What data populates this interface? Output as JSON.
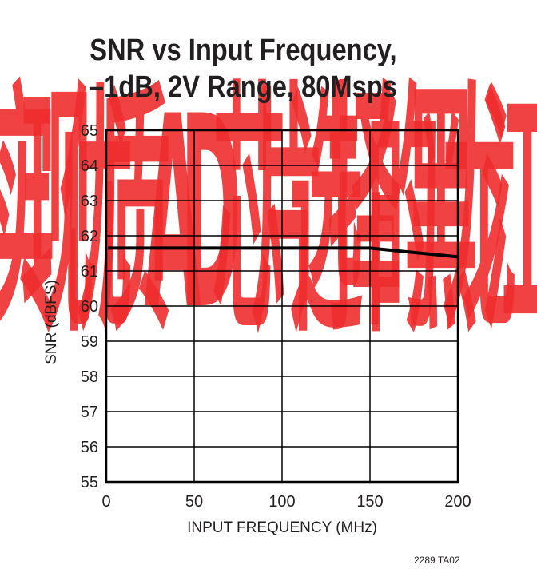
{
  "watermark": {
    "text": "实现优质AD芯片选择的黑龙江",
    "color": "#ee2e2e"
  },
  "chart_data": {
    "type": "line",
    "title_lines": [
      "SNR vs Input Frequency,",
      "–1dB, 2V Range, 80Msps"
    ],
    "xlabel": "INPUT FREQUENCY (MHz)",
    "ylabel": "SNR (dBFS)",
    "xlim": [
      0,
      200
    ],
    "ylim": [
      55,
      65
    ],
    "x_ticks": [
      0,
      50,
      100,
      150,
      200
    ],
    "y_ticks": [
      55,
      56,
      57,
      58,
      59,
      60,
      61,
      62,
      63,
      64,
      65
    ],
    "grid": true,
    "series": [
      {
        "x": [
          1,
          50,
          100,
          150,
          200
        ],
        "y": [
          61.65,
          61.65,
          61.65,
          61.65,
          61.4
        ]
      }
    ],
    "line_color": "#000000"
  },
  "figure_code": "2289 TA02"
}
